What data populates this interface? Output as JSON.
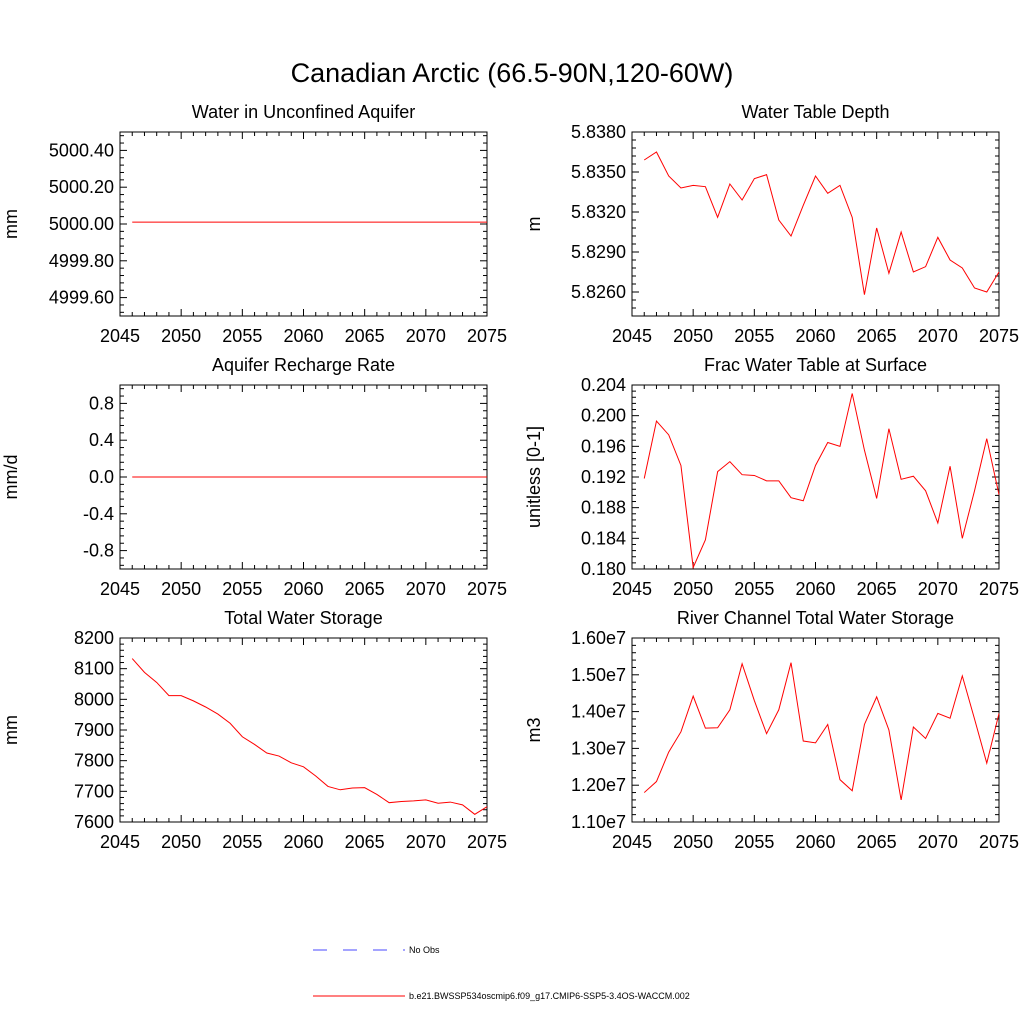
{
  "figure": {
    "title": "Canadian Arctic (66.5-90N,120-60W)",
    "line_color": "#ff0000",
    "obs_color": "#4a4aff"
  },
  "legend": {
    "obs_label": "No Obs",
    "model_label": "b.e21.BWSSP534oscmip6.f09_g17.CMIP6-SSP5-3.4OS-WACCM.002"
  },
  "chart_data": [
    {
      "type": "line",
      "title": "Water in Unconfined Aquifer",
      "ylabel": "mm",
      "xlim": [
        2045,
        2075
      ],
      "ylim": [
        4999.5,
        5000.5
      ],
      "xticks": [
        "2045",
        "2050",
        "2055",
        "2060",
        "2065",
        "2070",
        "2075"
      ],
      "yticks": [
        {
          "value": 4999.6,
          "label": "4999.60"
        },
        {
          "value": 4999.8,
          "label": "4999.80"
        },
        {
          "value": 5000.0,
          "label": "5000.00"
        },
        {
          "value": 5000.2,
          "label": "5000.20"
        },
        {
          "value": 5000.4,
          "label": "5000.40"
        }
      ],
      "series": [
        {
          "x": [
            2046,
            2075
          ],
          "y": [
            5000.01,
            5000.01
          ]
        }
      ]
    },
    {
      "type": "line",
      "title": "Water Table Depth",
      "ylabel": "m",
      "xlim": [
        2045,
        2075
      ],
      "ylim": [
        5.8242,
        5.838
      ],
      "xticks": [
        "2045",
        "2050",
        "2055",
        "2060",
        "2065",
        "2070",
        "2075"
      ],
      "yticks": [
        {
          "value": 5.826,
          "label": "5.8260"
        },
        {
          "value": 5.829,
          "label": "5.8290"
        },
        {
          "value": 5.832,
          "label": "5.8320"
        },
        {
          "value": 5.835,
          "label": "5.8350"
        },
        {
          "value": 5.838,
          "label": "5.8380"
        }
      ],
      "series": [
        {
          "x": [
            2046,
            2047,
            2048,
            2049,
            2050,
            2051,
            2052,
            2053,
            2054,
            2055,
            2056,
            2057,
            2058,
            2059,
            2060,
            2061,
            2062,
            2063,
            2064,
            2065,
            2066,
            2067,
            2068,
            2069,
            2070,
            2071,
            2072,
            2073,
            2074,
            2075
          ],
          "y": [
            5.8359,
            5.8365,
            5.8347,
            5.8338,
            5.834,
            5.8339,
            5.8316,
            5.8341,
            5.8329,
            5.8345,
            5.8348,
            5.8314,
            5.8302,
            5.8325,
            5.8347,
            5.8334,
            5.834,
            5.8316,
            5.8258,
            5.8308,
            5.8274,
            5.8305,
            5.8275,
            5.8279,
            5.8301,
            5.8284,
            5.8278,
            5.8263,
            5.826,
            5.8275
          ]
        }
      ]
    },
    {
      "type": "line",
      "title": "Aquifer Recharge Rate",
      "ylabel": "mm/d",
      "xlim": [
        2045,
        2075
      ],
      "ylim": [
        -1.0,
        1.0
      ],
      "xticks": [
        "2045",
        "2050",
        "2055",
        "2060",
        "2065",
        "2070",
        "2075"
      ],
      "yticks": [
        {
          "value": -0.8,
          "label": "-0.8"
        },
        {
          "value": -0.4,
          "label": "-0.4"
        },
        {
          "value": 0.0,
          "label": "0.0"
        },
        {
          "value": 0.4,
          "label": "0.4"
        },
        {
          "value": 0.8,
          "label": "0.8"
        }
      ],
      "series": [
        {
          "x": [
            2046,
            2075
          ],
          "y": [
            0.0,
            0.0
          ]
        }
      ]
    },
    {
      "type": "line",
      "title": "Frac Water Table at Surface",
      "ylabel": "unitless [0-1]",
      "xlim": [
        2045,
        2075
      ],
      "ylim": [
        0.18,
        0.204
      ],
      "xticks": [
        "2045",
        "2050",
        "2055",
        "2060",
        "2065",
        "2070",
        "2075"
      ],
      "yticks": [
        {
          "value": 0.18,
          "label": "0.180"
        },
        {
          "value": 0.184,
          "label": "0.184"
        },
        {
          "value": 0.188,
          "label": "0.188"
        },
        {
          "value": 0.192,
          "label": "0.192"
        },
        {
          "value": 0.196,
          "label": "0.196"
        },
        {
          "value": 0.2,
          "label": "0.200"
        },
        {
          "value": 0.204,
          "label": "0.204"
        }
      ],
      "series": [
        {
          "x": [
            2046,
            2047,
            2048,
            2049,
            2050,
            2051,
            2052,
            2053,
            2054,
            2055,
            2056,
            2057,
            2058,
            2059,
            2060,
            2061,
            2062,
            2063,
            2064,
            2065,
            2066,
            2067,
            2068,
            2069,
            2070,
            2071,
            2072,
            2073,
            2074,
            2075
          ],
          "y": [
            0.1918,
            0.1993,
            0.1975,
            0.1935,
            0.1802,
            0.1838,
            0.1927,
            0.194,
            0.1923,
            0.1922,
            0.1915,
            0.1915,
            0.1893,
            0.1889,
            0.1935,
            0.1965,
            0.196,
            0.2029,
            0.1955,
            0.1892,
            0.1983,
            0.1917,
            0.1921,
            0.1902,
            0.186,
            0.1934,
            0.184,
            0.1902,
            0.197,
            0.1897
          ]
        }
      ]
    },
    {
      "type": "line",
      "title": "Total Water Storage",
      "ylabel": "mm",
      "xlim": [
        2045,
        2075
      ],
      "ylim": [
        7600,
        8200
      ],
      "xticks": [
        "2045",
        "2050",
        "2055",
        "2060",
        "2065",
        "2070",
        "2075"
      ],
      "yticks": [
        {
          "value": 7600,
          "label": "7600"
        },
        {
          "value": 7700,
          "label": "7700"
        },
        {
          "value": 7800,
          "label": "7800"
        },
        {
          "value": 7900,
          "label": "7900"
        },
        {
          "value": 8000,
          "label": "8000"
        },
        {
          "value": 8100,
          "label": "8100"
        },
        {
          "value": 8200,
          "label": "8200"
        }
      ],
      "series": [
        {
          "x": [
            2046,
            2047,
            2048,
            2049,
            2050,
            2051,
            2052,
            2053,
            2054,
            2055,
            2056,
            2057,
            2058,
            2059,
            2060,
            2061,
            2062,
            2063,
            2064,
            2065,
            2066,
            2067,
            2068,
            2069,
            2070,
            2071,
            2072,
            2073,
            2074,
            2075
          ],
          "y": [
            8133,
            8088,
            8055,
            8012,
            8012,
            7995,
            7975,
            7952,
            7922,
            7878,
            7853,
            7825,
            7815,
            7793,
            7780,
            7750,
            7716,
            7705,
            7711,
            7712,
            7690,
            7663,
            7667,
            7669,
            7672,
            7661,
            7665,
            7656,
            7625,
            7650
          ]
        }
      ]
    },
    {
      "type": "line",
      "title": "River Channel Total Water Storage",
      "ylabel": "m3",
      "xlim": [
        2045,
        2075
      ],
      "ylim": [
        11000000.0,
        16000000.0
      ],
      "xticks": [
        "2045",
        "2050",
        "2055",
        "2060",
        "2065",
        "2070",
        "2075"
      ],
      "yticks": [
        {
          "value": 11000000.0,
          "label": "1.10e7"
        },
        {
          "value": 12000000.0,
          "label": "1.20e7"
        },
        {
          "value": 13000000.0,
          "label": "1.30e7"
        },
        {
          "value": 14000000.0,
          "label": "1.40e7"
        },
        {
          "value": 15000000.0,
          "label": "1.50e7"
        },
        {
          "value": 16000000.0,
          "label": "1.60e7"
        }
      ],
      "series": [
        {
          "x": [
            2046,
            2047,
            2048,
            2049,
            2050,
            2051,
            2052,
            2053,
            2054,
            2055,
            2056,
            2057,
            2058,
            2059,
            2060,
            2061,
            2062,
            2063,
            2064,
            2065,
            2066,
            2067,
            2068,
            2069,
            2070,
            2071,
            2072,
            2073,
            2074,
            2075
          ],
          "y": [
            11800000.0,
            12100000.0,
            12900000.0,
            13450000.0,
            14420000.0,
            13550000.0,
            13560000.0,
            14050000.0,
            15300000.0,
            14300000.0,
            13400000.0,
            14050000.0,
            15330000.0,
            13200000.0,
            13150000.0,
            13650000.0,
            12150000.0,
            11850000.0,
            13650000.0,
            14400000.0,
            13500000.0,
            11600000.0,
            13580000.0,
            13270000.0,
            13950000.0,
            13820000.0,
            14970000.0,
            13800000.0,
            12600000.0,
            13950000.0
          ]
        }
      ]
    }
  ]
}
